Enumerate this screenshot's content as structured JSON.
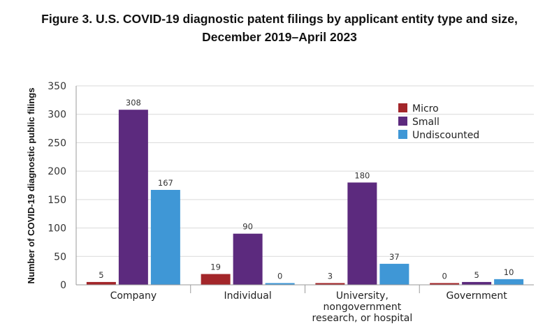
{
  "chart_data": {
    "type": "bar",
    "title_line1": "Figure 3. U.S. COVID-19 diagnostic patent filings by applicant entity type and size,",
    "title_line2": "December 2019–April 2023",
    "ylabel": "Number of COVID-19 diagnostic public filings",
    "xlabel": "",
    "ylim": [
      0,
      350
    ],
    "yticks": [
      0,
      50,
      100,
      150,
      200,
      250,
      300,
      350
    ],
    "grid": true,
    "legend_position": "top-right",
    "categories": [
      [
        "Company"
      ],
      [
        "Individual"
      ],
      [
        "University,",
        "nongovernment",
        "research, or hospital"
      ],
      [
        "Government"
      ]
    ],
    "series": [
      {
        "name": "Micro",
        "color": "#a3262a",
        "values": [
          5,
          19,
          3,
          0
        ]
      },
      {
        "name": "Small",
        "color": "#5c2a7e",
        "values": [
          308,
          90,
          180,
          5
        ]
      },
      {
        "name": "Undiscounted",
        "color": "#3f97d6",
        "values": [
          167,
          0,
          37,
          10
        ]
      }
    ]
  }
}
